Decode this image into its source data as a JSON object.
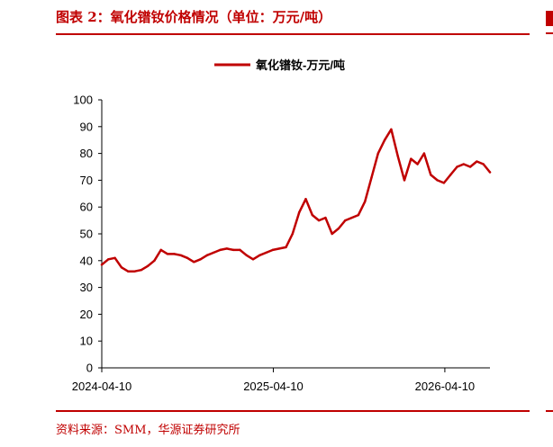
{
  "figure": {
    "title": "图表 2：氧化镨钕价格情况（单位：万元/吨）",
    "source": "资料来源：SMM，华源证券研究所"
  },
  "colors": {
    "accent": "#c00000",
    "series_line": "#c00000",
    "axis": "#000000"
  },
  "chart_data": {
    "type": "line",
    "title": "",
    "xlabel": "",
    "ylabel": "",
    "ylim": [
      0,
      100
    ],
    "y_ticks": [
      0,
      10,
      20,
      30,
      40,
      50,
      60,
      70,
      80,
      90,
      100
    ],
    "x_range": [
      "2024-04-10",
      "2026-07-15"
    ],
    "x_ticks": [
      "2024-04-10",
      "2025-04-10",
      "2026-04-10"
    ],
    "grid": false,
    "legend": "top-center",
    "series": [
      {
        "name": "氧化镨钕-万元/吨",
        "x": [
          "2024-04-10",
          "2024-04-24",
          "2024-05-08",
          "2024-05-22",
          "2024-06-05",
          "2024-06-19",
          "2024-07-03",
          "2024-07-17",
          "2024-07-31",
          "2024-08-14",
          "2024-08-28",
          "2024-09-11",
          "2024-09-25",
          "2024-10-09",
          "2024-10-23",
          "2024-11-06",
          "2024-11-20",
          "2024-12-04",
          "2024-12-18",
          "2025-01-01",
          "2025-01-15",
          "2025-01-29",
          "2025-02-12",
          "2025-02-26",
          "2025-03-12",
          "2025-03-26",
          "2025-04-09",
          "2025-04-23",
          "2025-05-07",
          "2025-05-21",
          "2025-06-04",
          "2025-06-18",
          "2025-07-02",
          "2025-07-16",
          "2025-07-30",
          "2025-08-13",
          "2025-08-27",
          "2025-09-10",
          "2025-09-24",
          "2025-10-08",
          "2025-10-22",
          "2025-11-05",
          "2025-11-19",
          "2025-12-03",
          "2025-12-17",
          "2025-12-31",
          "2026-01-14",
          "2026-01-28",
          "2026-02-11",
          "2026-02-25",
          "2026-03-11",
          "2026-03-25",
          "2026-04-08",
          "2026-04-22",
          "2026-05-06",
          "2026-05-20",
          "2026-06-03",
          "2026-06-17",
          "2026-07-01",
          "2026-07-15"
        ],
        "values": [
          38.5,
          40.5,
          41,
          37.5,
          36,
          36,
          36.5,
          38,
          40,
          44,
          42.5,
          42.5,
          42,
          41,
          39.5,
          40.5,
          42,
          43,
          44,
          44.5,
          44,
          44,
          42,
          40.5,
          42,
          43,
          44,
          44.5,
          45,
          50,
          58,
          63,
          57,
          55,
          56,
          50,
          52,
          55,
          56,
          57,
          62,
          71,
          80,
          85,
          89,
          79,
          70,
          78,
          76,
          80,
          72,
          70,
          69,
          72,
          75,
          76,
          75,
          77,
          76,
          73
        ]
      }
    ]
  }
}
